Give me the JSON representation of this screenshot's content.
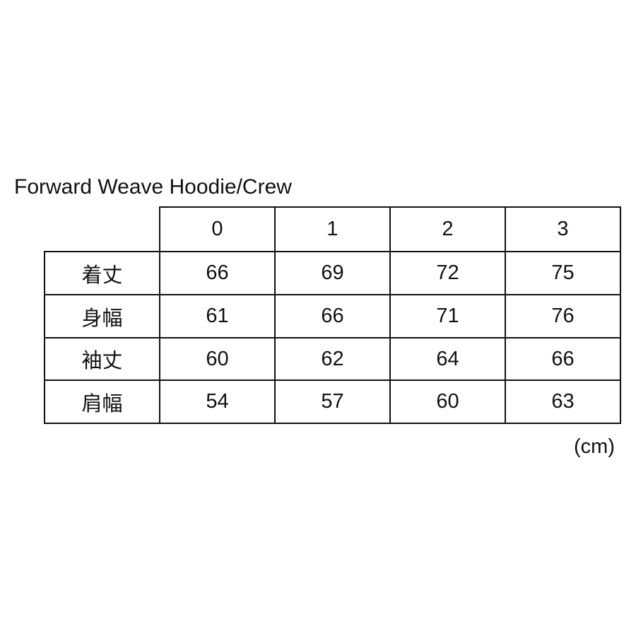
{
  "title": "Forward Weave Hoodie/Crew",
  "table": {
    "columns": [
      "0",
      "1",
      "2",
      "3"
    ],
    "rows": [
      {
        "label": "着丈",
        "values": [
          "66",
          "69",
          "72",
          "75"
        ]
      },
      {
        "label": "身幅",
        "values": [
          "61",
          "66",
          "71",
          "76"
        ]
      },
      {
        "label": "袖丈",
        "values": [
          "60",
          "62",
          "64",
          "66"
        ]
      },
      {
        "label": "肩幅",
        "values": [
          "54",
          "57",
          "60",
          "63"
        ]
      }
    ]
  },
  "unit": "(cm)"
}
